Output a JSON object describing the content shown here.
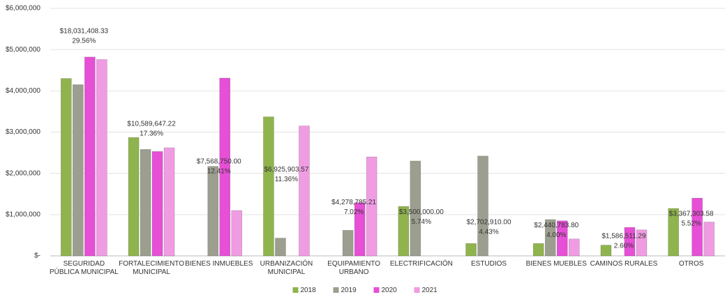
{
  "chart_data": {
    "type": "bar",
    "categories": [
      "SEGURIDAD PÚBLICA MUNICIPAL",
      "FORTALECIMIENTO MUNICIPAL",
      "BIENES INMUEBLES",
      "URBANIZACIÓN MUNICIPAL",
      "EQUIPAMIENTO URBANO",
      "ELECTRIFICACIÓN",
      "ESTUDIOS",
      "BIENES MUEBLES",
      "CAMINOS RURALES",
      "OTROS"
    ],
    "series": [
      {
        "name": "2018",
        "color": "#8fb44e",
        "values": [
          4300000,
          2870000,
          null,
          3370000,
          null,
          1200000,
          300000,
          300000,
          260000,
          1150000
        ]
      },
      {
        "name": "2019",
        "color": "#9c9e8f",
        "values": [
          4150000,
          2580000,
          2170000,
          430000,
          620000,
          2300000,
          2420000,
          880000,
          null,
          null
        ]
      },
      {
        "name": "2020",
        "color": "#e64fd6",
        "values": [
          4820000,
          2530000,
          4310000,
          null,
          1290000,
          null,
          null,
          850000,
          690000,
          1400000
        ]
      },
      {
        "name": "2021",
        "color": "#f09ce2",
        "values": [
          4760000,
          2620000,
          1100000,
          3150000,
          2400000,
          null,
          null,
          410000,
          630000,
          820000
        ]
      }
    ],
    "totals": {
      "values": [
        18031408.33,
        10589647.22,
        7568750.0,
        6925903.57,
        4278785.21,
        3500000.0,
        2702910.0,
        2440783.8,
        1586511.29,
        3367303.58
      ],
      "value_labels": [
        "$18,031,408.33",
        "$10,589,647.22",
        "$7,568,750.00",
        "$6,925,903.57",
        "$4,278,785.21",
        "$3,500,000.00",
        "$2,702,910.00",
        "$2,440,783.80",
        "$1,586,511.29",
        "$3,367,303.58"
      ]
    },
    "shares": {
      "values": [
        29.56,
        17.36,
        12.41,
        11.36,
        7.02,
        5.74,
        4.43,
        4.0,
        2.6,
        5.52
      ],
      "value_labels": [
        "29.56%",
        "17.36%",
        "12.41%",
        "11.36%",
        "7.02%",
        "5.74%",
        "4.43%",
        "4.00%",
        "2.60%",
        "5.52%"
      ]
    },
    "ylim": [
      0,
      6000000
    ],
    "yticks": [
      {
        "value": 0,
        "label": "$-"
      },
      {
        "value": 1000000,
        "label": "$1,000,000"
      },
      {
        "value": 2000000,
        "label": "$2,000,000"
      },
      {
        "value": 3000000,
        "label": "$3,000,000"
      },
      {
        "value": 4000000,
        "label": "$4,000,000"
      },
      {
        "value": 5000000,
        "label": "$5,000,000"
      },
      {
        "value": 6000000,
        "label": "$6,000,000"
      }
    ],
    "grid": true,
    "legend": "bottom"
  }
}
